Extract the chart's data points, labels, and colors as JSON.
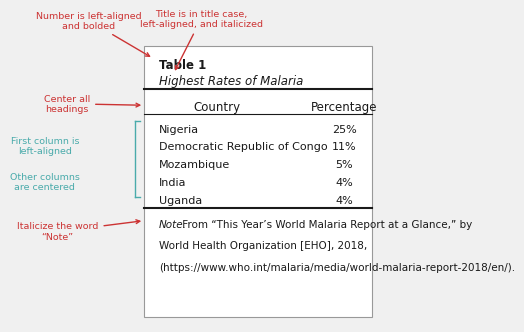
{
  "table_number": "Table 1",
  "table_title": "Highest Rates of Malaria",
  "col_headers": [
    "Country",
    "Percentage"
  ],
  "rows": [
    [
      "Nigeria",
      "25%"
    ],
    [
      "Democratic Republic of Congo",
      "11%"
    ],
    [
      "Mozambique",
      "5%"
    ],
    [
      "India",
      "4%"
    ],
    [
      "Uganda",
      "4%"
    ]
  ],
  "note_italic": "Note.",
  "note_line1": " From “This Year’s World Malaria Report at a Glance,” by",
  "note_line2": "World Health Organization [EHO], 2018,",
  "note_line3": "(https://www.who.int/malaria/media/world-malaria-report-2018/en/).",
  "ann_red": "#cc3333",
  "ann_teal": "#4aabab",
  "bg_color": "#f0f0f0",
  "box_bg": "#ffffff",
  "text_color": "#1a1a1a",
  "line_color": "#1a1a1a"
}
